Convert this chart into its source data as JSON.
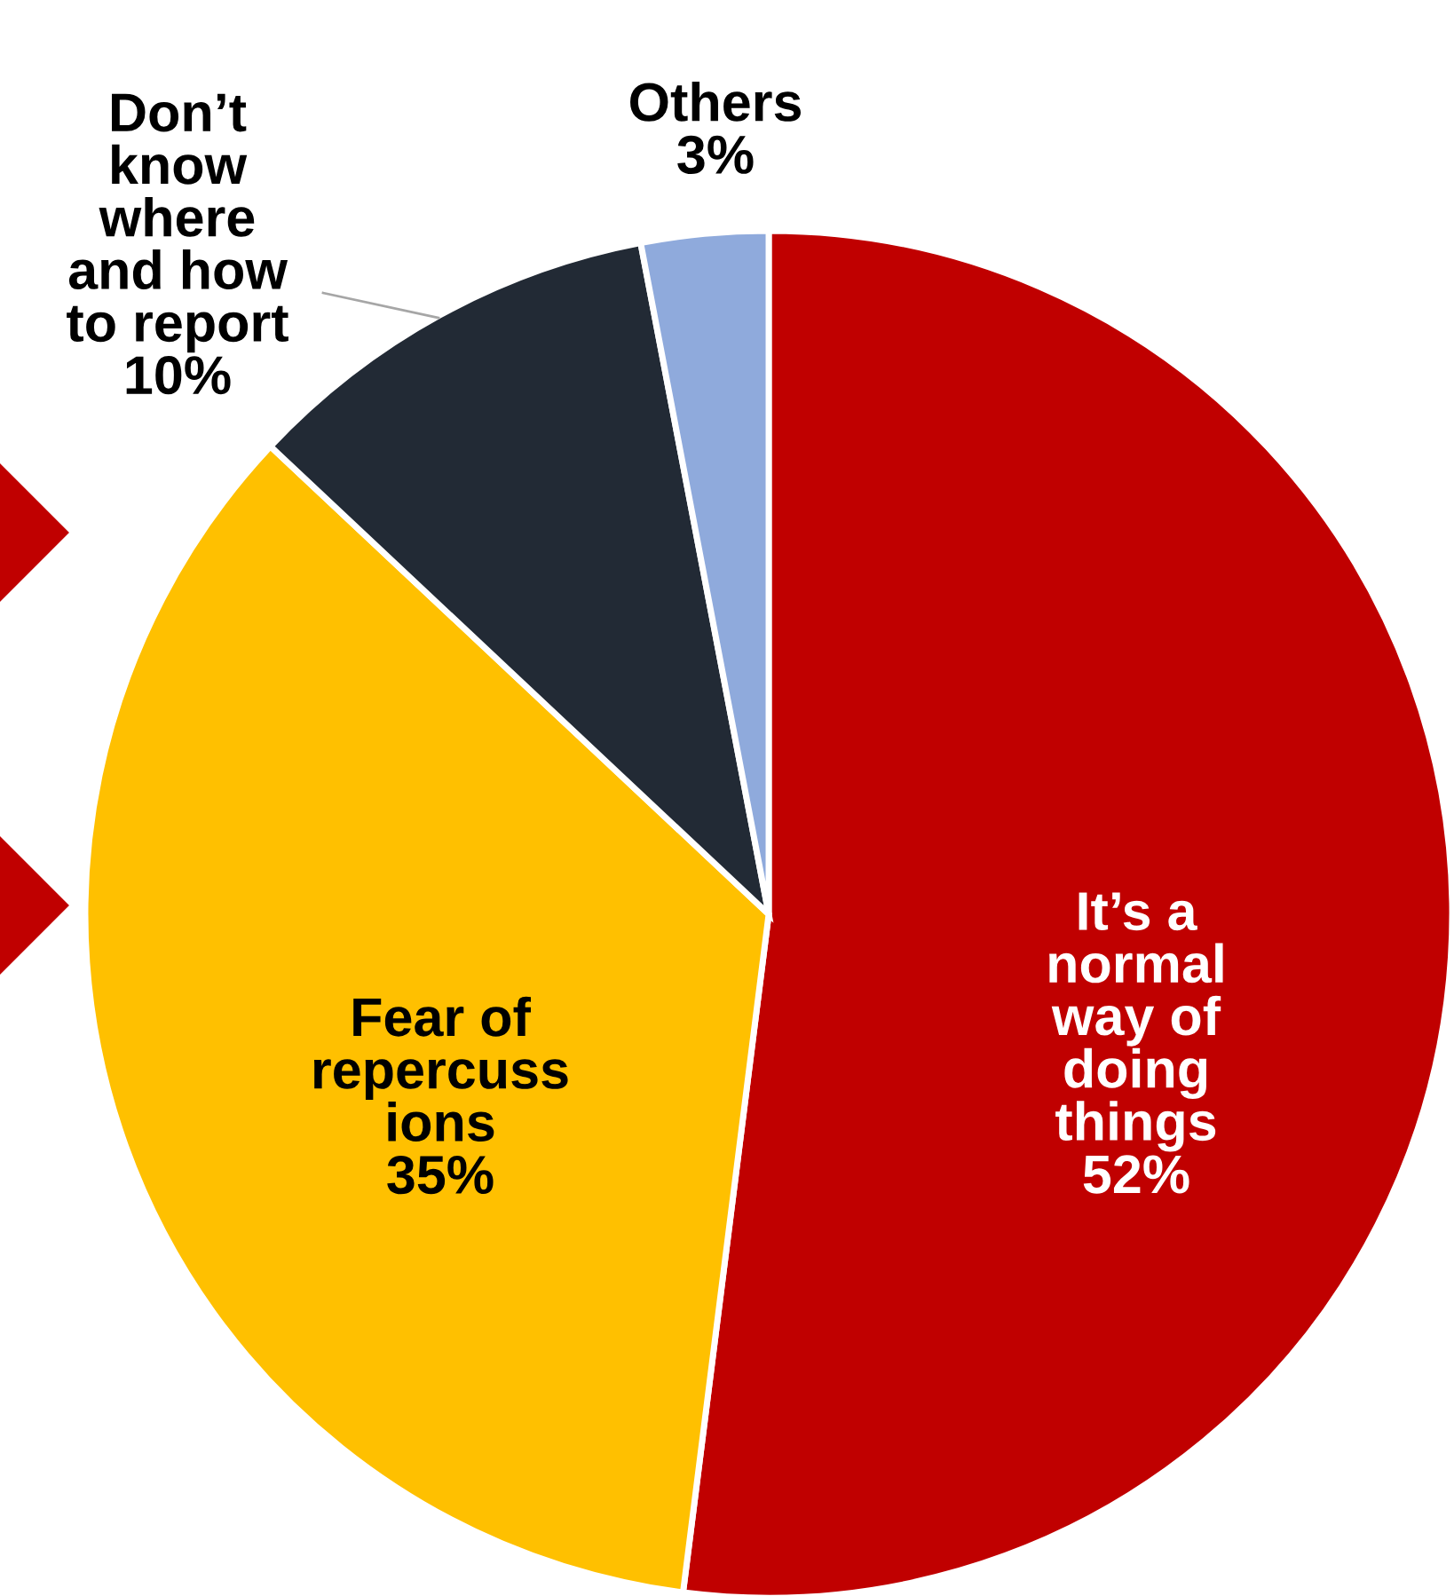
{
  "chart_data": {
    "type": "pie",
    "categories": [
      "It’s a\nnormal\nway of\ndoing\nthings",
      "Fear of\nrepercuss\nions",
      "Don’t\nknow\nwhere\nand how\nto report",
      "Others"
    ],
    "values": [
      52,
      35,
      10,
      3
    ],
    "value_labels": [
      "52%",
      "35%",
      "10%",
      "3%"
    ],
    "colors": [
      "#c00000",
      "#ffc000",
      "#222a35",
      "#8faadc"
    ]
  }
}
